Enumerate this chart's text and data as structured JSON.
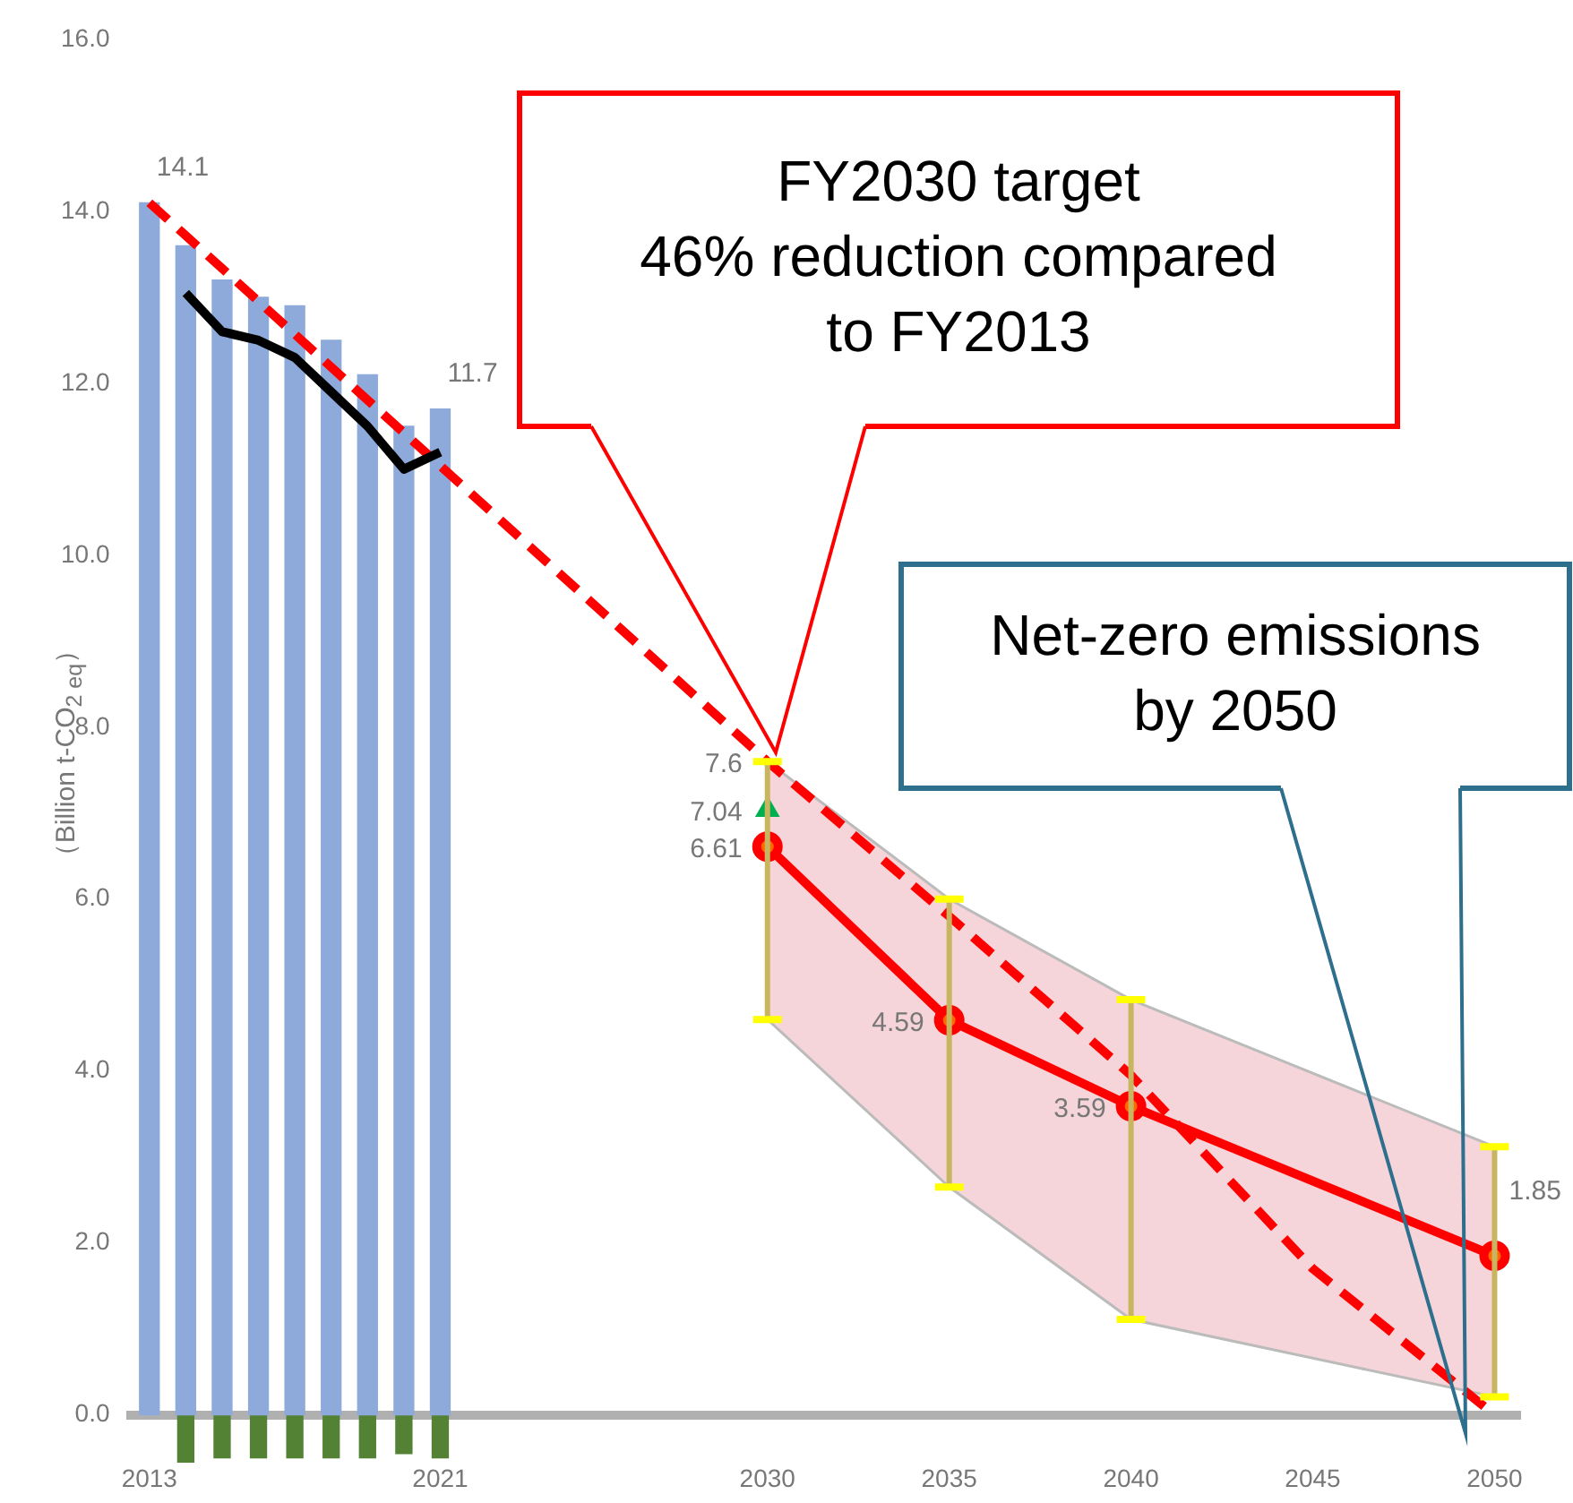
{
  "chart_data": {
    "type": "bar",
    "ylabel": "（Billion t-CO$_{2 eq}$）",
    "xlim": [
      2012.5,
      2050.7
    ],
    "xticks": [
      2013,
      2021,
      2030,
      2035,
      2040,
      2045,
      2050
    ],
    "ylim": [
      -0.6,
      16
    ],
    "yticks": [
      {
        "value": 0,
        "label": "0.0"
      },
      {
        "value": 2,
        "label": "2.0"
      },
      {
        "value": 4,
        "label": "4.0"
      },
      {
        "value": 6,
        "label": "6.0"
      },
      {
        "value": 8,
        "label": "8.0"
      },
      {
        "value": 10,
        "label": "10.0"
      },
      {
        "value": 12,
        "label": "12.0"
      },
      {
        "value": 14,
        "label": "14.0"
      },
      {
        "value": 16,
        "label": "16.0"
      }
    ],
    "grid": false,
    "legend": false,
    "series": [
      {
        "color": "#8eaadb",
        "x": [
          2013,
          2014,
          2015,
          2016,
          2017,
          2018,
          2019,
          2020,
          2021
        ],
        "values": [
          14.1,
          13.6,
          13.2,
          13.0,
          12.9,
          12.5,
          12.1,
          11.5,
          11.7
        ],
        "value_labels": [
          "14.1",
          null,
          null,
          null,
          null,
          null,
          null,
          null,
          "11.7"
        ]
      },
      {
        "color": "#548235",
        "x": [
          2014,
          2015,
          2016,
          2017,
          2018,
          2019,
          2020,
          2021
        ],
        "values": [
          -0.55,
          -0.5,
          -0.5,
          -0.5,
          -0.5,
          -0.5,
          -0.45,
          -0.5
        ]
      },
      {
        "type": "line",
        "color": "#000000",
        "marker": "none",
        "x": [
          2014,
          2015,
          2016,
          2017,
          2018,
          2019,
          2020,
          2021
        ],
        "values": [
          13.05,
          12.6,
          12.5,
          12.3,
          11.9,
          11.5,
          11.0,
          11.2
        ]
      },
      {
        "type": "line",
        "color": "#ff0000",
        "line_style": "dashed",
        "marker": "none",
        "x": [
          2013,
          2030,
          2035,
          2040,
          2045,
          2050
        ],
        "values": [
          14.1,
          7.6,
          5.8,
          3.95,
          1.7,
          0
        ],
        "value_labels": [
          null,
          "7.6",
          null,
          null,
          null,
          null
        ]
      },
      {
        "type": "line",
        "color": "#ff0000",
        "marker": "circle",
        "x": [
          2030,
          2035,
          2040,
          2050
        ],
        "values": [
          6.61,
          4.59,
          3.59,
          1.85
        ],
        "value_labels": [
          "6.61",
          "4.59",
          "3.59",
          "1.85"
        ],
        "errors": [
          [
            4.6,
            7.6
          ],
          [
            2.65,
            6.0
          ],
          [
            1.11,
            4.83
          ],
          [
            0.21,
            3.12
          ]
        ],
        "lower": [
          4.6,
          2.65,
          1.11,
          0.21
        ],
        "upper": [
          7.6,
          6.0,
          4.83,
          3.12
        ]
      },
      {
        "type": "scatter",
        "color": "#00b050",
        "marker": "triangle",
        "x": [
          2030
        ],
        "values": [
          7.04
        ],
        "value_labels": [
          "7.04"
        ]
      }
    ],
    "annotations": [
      "FY2030 target\n46% reduction compared\nto FY2013",
      "Net-zero emissions\nby 2050"
    ]
  }
}
